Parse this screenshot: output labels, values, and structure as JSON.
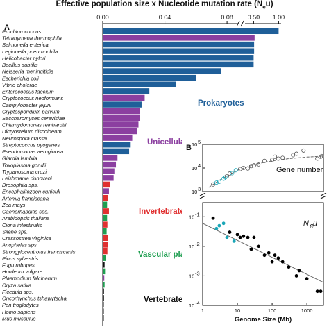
{
  "chart_data": [
    {
      "panel": "A",
      "type": "bar",
      "orientation": "horizontal",
      "title": "Effective population size x Nucleotide mutation rate (N",
      "title_sub": "e",
      "title_end": "u)",
      "x_ticks_linear": [
        "0.00",
        "0.04",
        "0.08"
      ],
      "x_ticks_upper": [
        "0.50",
        "1.00"
      ],
      "xlim_lower": [
        0,
        0.088
      ],
      "xlim_upper": [
        0.3,
        1.05
      ],
      "axis_break": true,
      "group_colors": {
        "Prokaryotes": "#1f5f99",
        "Unicellular eukaryotes": "#8b3fa0",
        "Invertebrates": "#e03030",
        "Vascular plants": "#1e9e50",
        "Vertebrates": "#111111"
      },
      "group_labels": [
        {
          "group": "Prokaryotes",
          "text": "Prokaryotes"
        },
        {
          "group": "Unicellular eukaryotes",
          "text": "Unicellular eukaryotes"
        },
        {
          "group": "Invertebrates",
          "text": "Invertebrates"
        },
        {
          "group": "Vascular plants",
          "text": "Vascular plants"
        },
        {
          "group": "Vertebrates",
          "text": "Vertebrates"
        }
      ],
      "categories": [
        "Prochlorococcus",
        "Tetrahymena thermophila",
        "Salmonella enterica",
        "Legionella pneumophila",
        "Helicobacter pylori",
        "Bacillus subtilis",
        "Neisseria meningitidis",
        "Escherichia coli",
        "Vibrio cholerae",
        "Enterococcus faecium",
        "Cryptococcus neoformans",
        "Campylobacter jejuni",
        "Cryptosporidium parvum",
        "Saccharomyces cerevisiae",
        "Chlamydomonas reinhardtii",
        "Dictyostelium discoideum",
        "Neurospora crassa",
        "Streptococcus pyogenes",
        "Pseudomonas aeruginosa",
        "Giardia lamblia",
        "Toxoplasma gondii",
        "Trypanosoma cruzi",
        "Leishmania donovani",
        "Drosophila sps.",
        "Encephalitozoon cuniculi",
        "Artemia franciscana",
        "Zea mays",
        "Caenorhabditis sps.",
        "Arabidopsis thaliana",
        "Ciona intestinalis",
        "Silene sps.",
        "Crassostrea virginica",
        "Anopheles sps.",
        "Strongylocentrotus franciscanis",
        "Pinus sylvestris",
        "Fugu rubripes",
        "Hordeum vulgare",
        "Plasmodium falciparum",
        "Oryza sativa",
        "Ficedula sps.",
        "Oncorhynchus tshawytscha",
        "Pan troglodytes",
        "Homo sapiens",
        "Mus musculus"
      ],
      "groups": [
        "Prokaryotes",
        "Unicellular eukaryotes",
        "Prokaryotes",
        "Prokaryotes",
        "Prokaryotes",
        "Prokaryotes",
        "Prokaryotes",
        "Prokaryotes",
        "Prokaryotes",
        "Prokaryotes",
        "Unicellular eukaryotes",
        "Prokaryotes",
        "Unicellular eukaryotes",
        "Unicellular eukaryotes",
        "Unicellular eukaryotes",
        "Unicellular eukaryotes",
        "Unicellular eukaryotes",
        "Prokaryotes",
        "Prokaryotes",
        "Unicellular eukaryotes",
        "Unicellular eukaryotes",
        "Unicellular eukaryotes",
        "Unicellular eukaryotes",
        "Invertebrates",
        "Unicellular eukaryotes",
        "Invertebrates",
        "Vascular plants",
        "Invertebrates",
        "Vascular plants",
        "Invertebrates",
        "Vascular plants",
        "Invertebrates",
        "Invertebrates",
        "Invertebrates",
        "Vascular plants",
        "Vertebrates",
        "Vascular plants",
        "Unicellular eukaryotes",
        "Vascular plants",
        "Vertebrates",
        "Vertebrates",
        "Vertebrates",
        "Vertebrates",
        "Vertebrates"
      ],
      "values": [
        1.0,
        0.52,
        0.51,
        0.51,
        0.5,
        0.5,
        0.076,
        0.06,
        0.047,
        0.03,
        0.027,
        0.025,
        0.024,
        0.024,
        0.023,
        0.022,
        0.019,
        0.018,
        0.017,
        0.0095,
        0.0085,
        0.0075,
        0.007,
        0.0045,
        0.004,
        0.0035,
        0.0028,
        0.004,
        0.0028,
        0.003,
        0.0025,
        0.0035,
        0.0035,
        0.003,
        0.0018,
        0.0012,
        0.0015,
        0.001,
        0.0012,
        0.0008,
        0.0008,
        0.0003,
        0.0003,
        0.0003
      ]
    },
    {
      "panel": "B",
      "type": "scatter",
      "xlabel": "Genome Size (Mb)",
      "x_scale": "log",
      "xlim": [
        1,
        3000
      ],
      "x_ticks": [
        "1",
        "10",
        "100",
        "1000"
      ],
      "colors": {
        "prokaryote_euk": "#000000",
        "highlight": "#1aa6b7",
        "fit": "#666666"
      },
      "top": {
        "label": "Gene number",
        "ylim": [
          1000,
          100000
        ],
        "y_ticks": [
          "10",
          "10",
          "10"
        ],
        "y_tick_exp": [
          "3",
          "4",
          "5"
        ],
        "points_x": [
          2,
          2.5,
          3,
          4,
          4.5,
          5,
          6,
          7,
          9,
          12,
          15,
          20,
          25,
          30,
          40,
          60,
          100,
          120,
          150,
          200,
          400,
          500,
          800,
          2000,
          2500,
          2700
        ],
        "points_y": [
          2000,
          2400,
          2600,
          3500,
          4000,
          4500,
          5800,
          6000,
          8000,
          9000,
          10000,
          9500,
          12000,
          13000,
          14000,
          20000,
          22000,
          30000,
          25000,
          27000,
          35000,
          40000,
          55000,
          25000,
          30000,
          32000
        ],
        "points_highlight": [
          false,
          true,
          true,
          true,
          true,
          false,
          false,
          true,
          true,
          false,
          false,
          false,
          false,
          false,
          false,
          false,
          false,
          false,
          false,
          false,
          false,
          false,
          false,
          false,
          false,
          false
        ],
        "fit_x": [
          1.5,
          3,
          10,
          30,
          100,
          300,
          1000,
          3000
        ],
        "fit_y": [
          1500,
          3000,
          8000,
          14000,
          20000,
          25000,
          29000,
          32000
        ]
      },
      "bottom": {
        "label": "N",
        "label_sub": "e",
        "label_end": "u",
        "ylim": [
          0.0001,
          0.3
        ],
        "y_ticks": [
          "10",
          "10",
          "10",
          "10"
        ],
        "y_tick_exp": [
          "-4",
          "-3",
          "-2",
          "-1"
        ],
        "points_x": [
          2,
          2.5,
          3,
          4,
          5,
          6,
          8,
          10,
          12,
          15,
          20,
          25,
          30,
          40,
          60,
          80,
          100,
          120,
          150,
          200,
          300,
          500,
          600,
          1000,
          2000,
          2500
        ],
        "points_y": [
          0.09,
          0.04,
          0.05,
          0.06,
          0.02,
          0.03,
          0.015,
          0.025,
          0.02,
          0.022,
          0.02,
          0.008,
          0.02,
          0.01,
          0.005,
          0.006,
          0.003,
          0.005,
          0.004,
          0.003,
          0.002,
          0.001,
          0.0015,
          0.0008,
          0.0003,
          0.0003
        ],
        "points_highlight": [
          false,
          true,
          true,
          true,
          true,
          false,
          true,
          false,
          false,
          false,
          false,
          false,
          false,
          false,
          false,
          false,
          false,
          false,
          false,
          false,
          false,
          false,
          false,
          false,
          false,
          false
        ],
        "fit_x": [
          1,
          3000
        ],
        "fit_y": [
          0.06,
          0.0006
        ]
      }
    }
  ]
}
